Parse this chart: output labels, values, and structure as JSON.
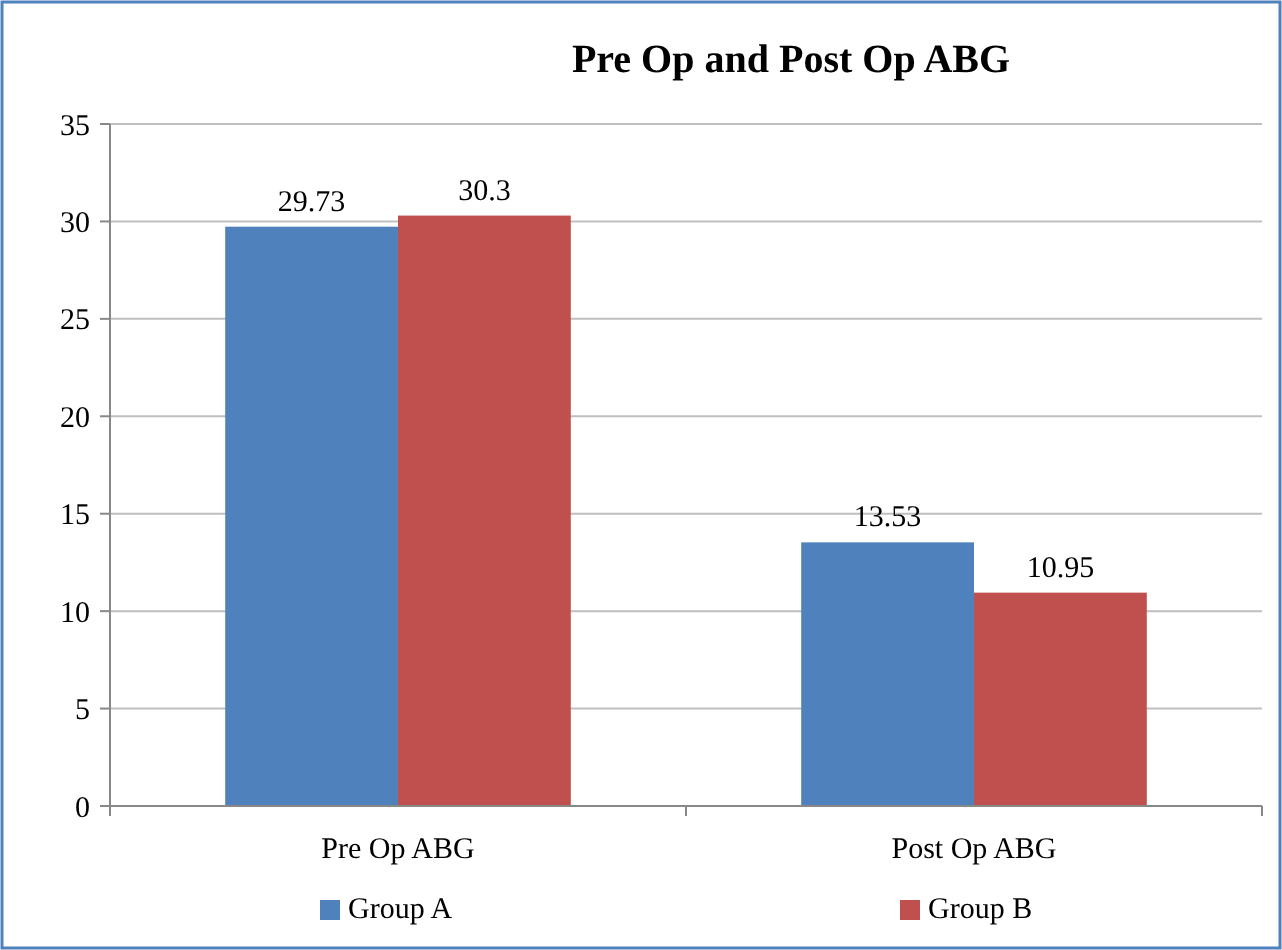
{
  "chart_data": {
    "type": "bar",
    "title": "Pre Op and Post Op ABG",
    "categories": [
      "Pre Op ABG",
      "Post Op ABG"
    ],
    "series": [
      {
        "name": "Group A",
        "color": "#4f81bd",
        "values": [
          29.73,
          13.53
        ]
      },
      {
        "name": "Group B",
        "color": "#c0504d",
        "values": [
          30.3,
          10.95
        ]
      }
    ],
    "ylim": [
      0,
      35
    ],
    "yticks": [
      0,
      5,
      10,
      15,
      20,
      25,
      30,
      35
    ],
    "grid": "y",
    "legend": "bottom",
    "data_labels": true
  }
}
